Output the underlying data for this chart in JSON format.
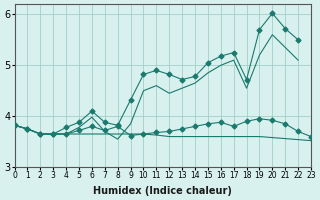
{
  "title": "",
  "xlabel": "Humidex (Indice chaleur)",
  "ylabel": "",
  "bg_color": "#d8f0ee",
  "line_color": "#1a7a6e",
  "marker_color": "#1a7a6e",
  "xlim": [
    0,
    23
  ],
  "ylim": [
    3,
    6.2
  ],
  "yticks": [
    3,
    4,
    5,
    6
  ],
  "xticks": [
    0,
    1,
    2,
    3,
    4,
    5,
    6,
    7,
    8,
    9,
    10,
    11,
    12,
    13,
    14,
    15,
    16,
    17,
    18,
    19,
    20,
    21,
    22,
    23
  ],
  "grid_color": "#a0d0c8",
  "x": [
    0,
    1,
    2,
    3,
    4,
    5,
    6,
    7,
    8,
    9,
    10,
    11,
    12,
    13,
    14,
    15,
    16,
    17,
    18,
    19,
    20,
    21,
    22,
    23
  ],
  "line1": [
    3.82,
    3.75,
    3.65,
    3.65,
    3.65,
    3.72,
    3.8,
    3.72,
    3.8,
    3.62,
    3.65,
    3.68,
    3.7,
    3.75,
    3.8,
    3.85,
    3.88,
    3.8,
    3.9,
    3.95,
    3.92,
    3.85,
    3.7,
    3.6
  ],
  "line2": [
    3.82,
    3.75,
    3.65,
    3.65,
    3.65,
    3.65,
    3.65,
    3.65,
    3.65,
    3.65,
    3.65,
    3.63,
    3.6,
    3.6,
    3.6,
    3.6,
    3.6,
    3.6,
    3.6,
    3.6,
    3.58,
    3.56,
    3.54,
    3.52
  ],
  "line3": [
    3.82,
    3.75,
    3.65,
    3.65,
    3.78,
    3.88,
    4.1,
    3.88,
    3.82,
    4.32,
    4.82,
    4.9,
    4.82,
    4.72,
    4.78,
    5.05,
    5.18,
    5.25,
    4.72,
    5.7,
    6.02,
    5.72,
    5.5,
    null
  ],
  "line4": [
    3.82,
    3.75,
    3.65,
    3.65,
    3.65,
    3.78,
    3.98,
    3.7,
    3.55,
    3.85,
    4.5,
    4.6,
    4.45,
    4.55,
    4.65,
    4.85,
    5.0,
    5.1,
    4.55,
    5.2,
    5.6,
    5.35,
    5.1,
    null
  ]
}
